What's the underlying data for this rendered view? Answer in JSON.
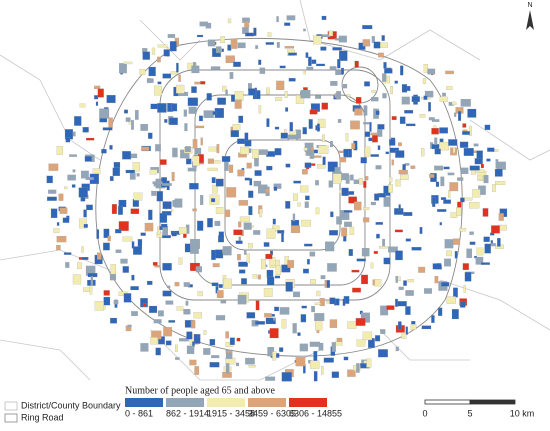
{
  "north": "N",
  "legend": {
    "title": "Number of people aged 65 and above",
    "classes": [
      {
        "label": "0 - 861",
        "color": "#2f66b8"
      },
      {
        "label": "862 - 1914",
        "color": "#93a6b8"
      },
      {
        "label": "1915 - 3458",
        "color": "#f2ecb0"
      },
      {
        "label": "3459 - 6305",
        "color": "#dca47a"
      },
      {
        "label": "6306 - 14855",
        "color": "#e0321e"
      }
    ]
  },
  "boundary_legend": [
    {
      "label": "District/County Boundary"
    },
    {
      "label": "Ring Road"
    }
  ],
  "scale_bar": {
    "labels": [
      "0",
      "5",
      "10 km"
    ]
  }
}
